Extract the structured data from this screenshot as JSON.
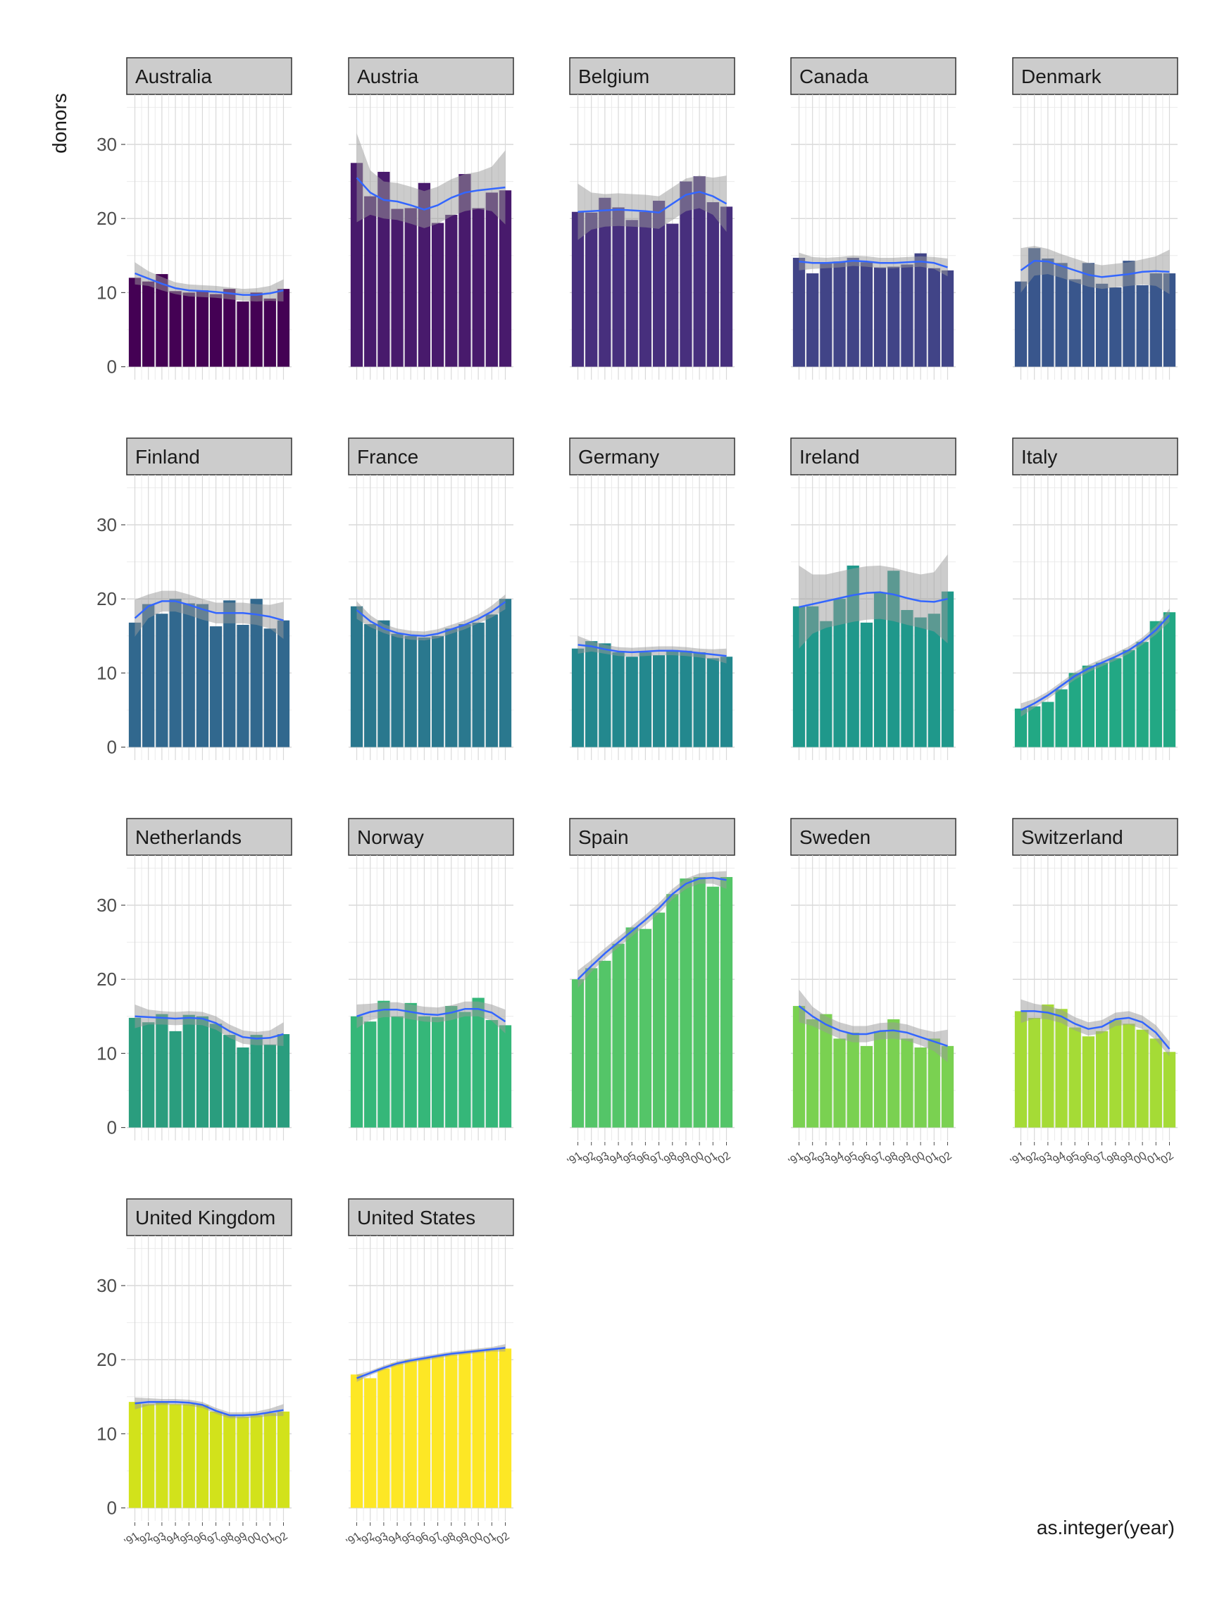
{
  "chart_data": {
    "type": "bar",
    "xlabel": "as.integer(year)",
    "ylabel": "donors",
    "x": [
      1991,
      1992,
      1993,
      1994,
      1995,
      1996,
      1997,
      1998,
      1999,
      2000,
      2001,
      2002
    ],
    "x_tick_labels": [
      "'91",
      "'92",
      "'93",
      "'94",
      "'95",
      "'96",
      "'97",
      "'98",
      "'99",
      "'00",
      "'01",
      "'02"
    ],
    "y_ticks": [
      0,
      10,
      20,
      30
    ],
    "ylim": [
      0,
      35
    ],
    "grid": true,
    "facet_layout": "wrap, 5 columns",
    "smooth_color": "#3366FF",
    "ribbon_color": "#999999",
    "fill_palette": "viridis",
    "panels": [
      {
        "name": "Australia",
        "color": "#440154",
        "values": [
          12.0,
          11.5,
          12.5,
          10.2,
          10.0,
          10.3,
          9.8,
          10.5,
          8.8,
          10.0,
          9.2,
          10.5
        ],
        "smooth": [
          12.6,
          11.9,
          11.2,
          10.6,
          10.3,
          10.2,
          10.1,
          9.9,
          9.7,
          9.7,
          9.9,
          10.3
        ],
        "ribbon": [
          1.5,
          1.0,
          0.9,
          0.8,
          0.8,
          0.8,
          0.8,
          0.8,
          0.8,
          0.9,
          1.0,
          1.5
        ]
      },
      {
        "name": "Austria",
        "color": "#481A6C",
        "values": [
          27.5,
          23.0,
          26.3,
          21.3,
          21.4,
          24.8,
          19.4,
          20.5,
          26.0,
          21.4,
          23.5,
          23.8
        ],
        "smooth": [
          25.5,
          23.5,
          22.5,
          22.3,
          21.8,
          21.2,
          21.8,
          22.8,
          23.5,
          23.8,
          24.0,
          24.2
        ],
        "ribbon": [
          6.0,
          3.0,
          2.5,
          2.5,
          2.5,
          2.5,
          2.5,
          2.5,
          2.5,
          2.5,
          3.0,
          5.0
        ]
      },
      {
        "name": "Belgium",
        "color": "#472F7D",
        "values": [
          20.9,
          20.8,
          22.8,
          21.5,
          19.8,
          20.9,
          22.4,
          19.3,
          25.0,
          25.7,
          22.2,
          21.6
        ],
        "smooth": [
          20.9,
          21.0,
          21.1,
          21.2,
          21.1,
          21.0,
          20.8,
          22.0,
          23.2,
          23.6,
          23.0,
          22.0
        ],
        "ribbon": [
          3.8,
          2.5,
          2.2,
          2.2,
          2.2,
          2.2,
          2.2,
          2.2,
          2.2,
          2.2,
          2.5,
          3.8
        ]
      },
      {
        "name": "Canada",
        "color": "#414487",
        "values": [
          14.7,
          12.6,
          14.0,
          14.2,
          14.7,
          14.1,
          13.4,
          13.5,
          13.8,
          15.3,
          13.3,
          13.0
        ],
        "smooth": [
          14.2,
          14.0,
          14.0,
          14.1,
          14.3,
          14.2,
          14.0,
          14.0,
          14.1,
          14.2,
          14.0,
          13.4
        ],
        "ribbon": [
          1.2,
          0.8,
          0.7,
          0.7,
          0.7,
          0.7,
          0.7,
          0.7,
          0.7,
          0.7,
          0.8,
          1.2
        ]
      },
      {
        "name": "Denmark",
        "color": "#39568C",
        "values": [
          11.5,
          16.0,
          14.6,
          14.0,
          11.8,
          14.0,
          11.2,
          10.7,
          14.3,
          11.0,
          12.6,
          12.6
        ],
        "smooth": [
          13.0,
          14.3,
          14.2,
          13.6,
          13.0,
          12.4,
          12.1,
          12.3,
          12.5,
          12.8,
          12.9,
          12.8
        ],
        "ribbon": [
          3.0,
          2.0,
          1.7,
          1.6,
          1.6,
          1.6,
          1.6,
          1.6,
          1.6,
          1.7,
          2.0,
          3.0
        ]
      },
      {
        "name": "Finland",
        "color": "#31688E",
        "values": [
          16.8,
          19.3,
          18.0,
          20.0,
          19.4,
          19.3,
          16.3,
          19.8,
          16.5,
          20.0,
          16.0,
          17.1
        ],
        "smooth": [
          17.4,
          19.0,
          19.7,
          19.7,
          19.2,
          18.6,
          18.1,
          18.1,
          18.1,
          17.9,
          17.6,
          17.1
        ],
        "ribbon": [
          2.5,
          1.6,
          1.4,
          1.4,
          1.4,
          1.4,
          1.4,
          1.4,
          1.4,
          1.4,
          1.6,
          2.5
        ]
      },
      {
        "name": "France",
        "color": "#2A788E",
        "values": [
          19.0,
          16.6,
          17.1,
          15.3,
          15.0,
          14.8,
          15.0,
          16.0,
          16.6,
          16.8,
          17.9,
          20.0
        ],
        "smooth": [
          18.5,
          17.0,
          16.0,
          15.4,
          15.1,
          15.0,
          15.3,
          15.9,
          16.5,
          17.3,
          18.3,
          19.6
        ],
        "ribbon": [
          1.2,
          0.8,
          0.6,
          0.6,
          0.6,
          0.6,
          0.6,
          0.6,
          0.6,
          0.6,
          0.8,
          1.0
        ]
      },
      {
        "name": "Germany",
        "color": "#23888E",
        "values": [
          13.3,
          14.3,
          14.0,
          12.8,
          12.2,
          12.8,
          12.4,
          13.1,
          13.0,
          12.8,
          12.0,
          12.2
        ],
        "smooth": [
          13.8,
          13.6,
          13.2,
          12.9,
          12.8,
          12.9,
          13.0,
          13.0,
          12.9,
          12.7,
          12.5,
          12.3
        ],
        "ribbon": [
          1.2,
          0.7,
          0.6,
          0.6,
          0.6,
          0.6,
          0.6,
          0.6,
          0.6,
          0.6,
          0.7,
          1.0
        ]
      },
      {
        "name": "Ireland",
        "color": "#1F988B",
        "values": [
          19.0,
          19.0,
          17.0,
          20.0,
          24.5,
          16.8,
          20.8,
          23.8,
          18.5,
          17.5,
          18.0,
          21.0
        ],
        "smooth": [
          18.9,
          19.3,
          19.7,
          20.1,
          20.5,
          20.8,
          20.9,
          20.6,
          20.1,
          19.7,
          19.6,
          20.0
        ],
        "ribbon": [
          5.6,
          4.0,
          3.6,
          3.6,
          3.6,
          3.6,
          3.6,
          3.6,
          3.6,
          3.6,
          4.0,
          6.0
        ]
      },
      {
        "name": "Italy",
        "color": "#22A884",
        "values": [
          5.2,
          5.5,
          6.1,
          7.8,
          10.0,
          11.0,
          11.4,
          12.0,
          13.1,
          14.2,
          17.0,
          18.2
        ],
        "smooth": [
          5.0,
          5.9,
          7.0,
          8.3,
          9.6,
          10.6,
          11.4,
          12.2,
          13.1,
          14.3,
          15.8,
          17.8
        ],
        "ribbon": [
          0.9,
          0.6,
          0.5,
          0.5,
          0.5,
          0.5,
          0.5,
          0.5,
          0.5,
          0.5,
          0.6,
          0.9
        ]
      },
      {
        "name": "Netherlands",
        "color": "#2A9D7E",
        "values": [
          14.8,
          14.2,
          15.3,
          13.0,
          15.2,
          15.0,
          14.0,
          12.5,
          10.8,
          12.5,
          11.2,
          12.6
        ],
        "smooth": [
          15.0,
          14.9,
          14.8,
          14.7,
          14.8,
          14.7,
          14.1,
          13.0,
          12.2,
          12.0,
          12.1,
          12.6
        ],
        "ribbon": [
          1.6,
          1.0,
          0.9,
          0.9,
          0.9,
          0.9,
          0.9,
          0.9,
          0.9,
          0.9,
          1.0,
          1.6
        ]
      },
      {
        "name": "Norway",
        "color": "#35B779",
        "values": [
          15.0,
          14.3,
          17.1,
          15.0,
          16.8,
          15.0,
          14.9,
          16.4,
          15.6,
          17.5,
          14.5,
          13.8
        ],
        "smooth": [
          15.0,
          15.6,
          15.9,
          15.9,
          15.6,
          15.3,
          15.2,
          15.5,
          16.0,
          16.0,
          15.5,
          14.3
        ],
        "ribbon": [
          1.6,
          1.1,
          1.0,
          1.0,
          1.0,
          1.0,
          1.0,
          1.0,
          1.0,
          1.0,
          1.1,
          1.6
        ]
      },
      {
        "name": "Spain",
        "color": "#54C568",
        "values": [
          20.0,
          21.5,
          22.5,
          24.8,
          27.0,
          26.8,
          29.0,
          31.5,
          33.6,
          33.8,
          32.5,
          33.8
        ],
        "smooth": [
          20.0,
          21.8,
          23.5,
          25.0,
          26.5,
          28.0,
          29.6,
          31.5,
          32.9,
          33.6,
          33.7,
          33.4
        ],
        "ribbon": [
          1.2,
          0.8,
          0.7,
          0.7,
          0.7,
          0.7,
          0.7,
          0.7,
          0.7,
          0.7,
          0.8,
          1.2
        ]
      },
      {
        "name": "Sweden",
        "color": "#7AD151",
        "values": [
          16.4,
          14.6,
          15.3,
          12.0,
          12.8,
          11.0,
          13.0,
          14.6,
          12.0,
          10.8,
          12.0,
          11.0
        ],
        "smooth": [
          16.4,
          15.0,
          13.9,
          13.1,
          12.6,
          12.6,
          13.0,
          13.1,
          12.8,
          12.2,
          11.6,
          11.0
        ],
        "ribbon": [
          2.2,
          1.3,
          1.1,
          1.1,
          1.1,
          1.1,
          1.1,
          1.1,
          1.1,
          1.1,
          1.3,
          2.2
        ]
      },
      {
        "name": "Switzerland",
        "color": "#A5DB36",
        "values": [
          15.7,
          14.8,
          16.6,
          16.0,
          13.5,
          12.3,
          13.0,
          14.5,
          14.0,
          13.2,
          12.0,
          10.2
        ],
        "smooth": [
          15.7,
          15.7,
          15.5,
          15.0,
          14.0,
          13.3,
          13.6,
          14.6,
          14.8,
          14.2,
          12.8,
          10.6
        ],
        "ribbon": [
          1.6,
          1.0,
          0.9,
          0.9,
          0.9,
          0.9,
          0.9,
          0.9,
          0.9,
          0.9,
          1.0,
          1.0
        ]
      },
      {
        "name": "United Kingdom",
        "color": "#D2E21B",
        "values": [
          14.3,
          14.0,
          14.2,
          14.0,
          14.0,
          13.9,
          13.0,
          12.6,
          12.3,
          12.5,
          12.8,
          13.0
        ],
        "smooth": [
          14.1,
          14.3,
          14.3,
          14.3,
          14.2,
          13.9,
          13.1,
          12.5,
          12.5,
          12.6,
          12.9,
          13.2
        ],
        "ribbon": [
          0.8,
          0.5,
          0.4,
          0.4,
          0.4,
          0.4,
          0.4,
          0.4,
          0.4,
          0.4,
          0.5,
          0.8
        ]
      },
      {
        "name": "United States",
        "color": "#FDE725",
        "values": [
          18.0,
          17.5,
          18.8,
          19.5,
          20.0,
          20.2,
          20.5,
          20.7,
          21.0,
          21.2,
          21.5,
          21.5
        ],
        "smooth": [
          17.5,
          18.2,
          18.9,
          19.5,
          19.9,
          20.2,
          20.5,
          20.8,
          21.0,
          21.2,
          21.4,
          21.6
        ],
        "ribbon": [
          0.5,
          0.3,
          0.3,
          0.3,
          0.3,
          0.3,
          0.3,
          0.3,
          0.3,
          0.3,
          0.3,
          0.5
        ]
      }
    ]
  }
}
